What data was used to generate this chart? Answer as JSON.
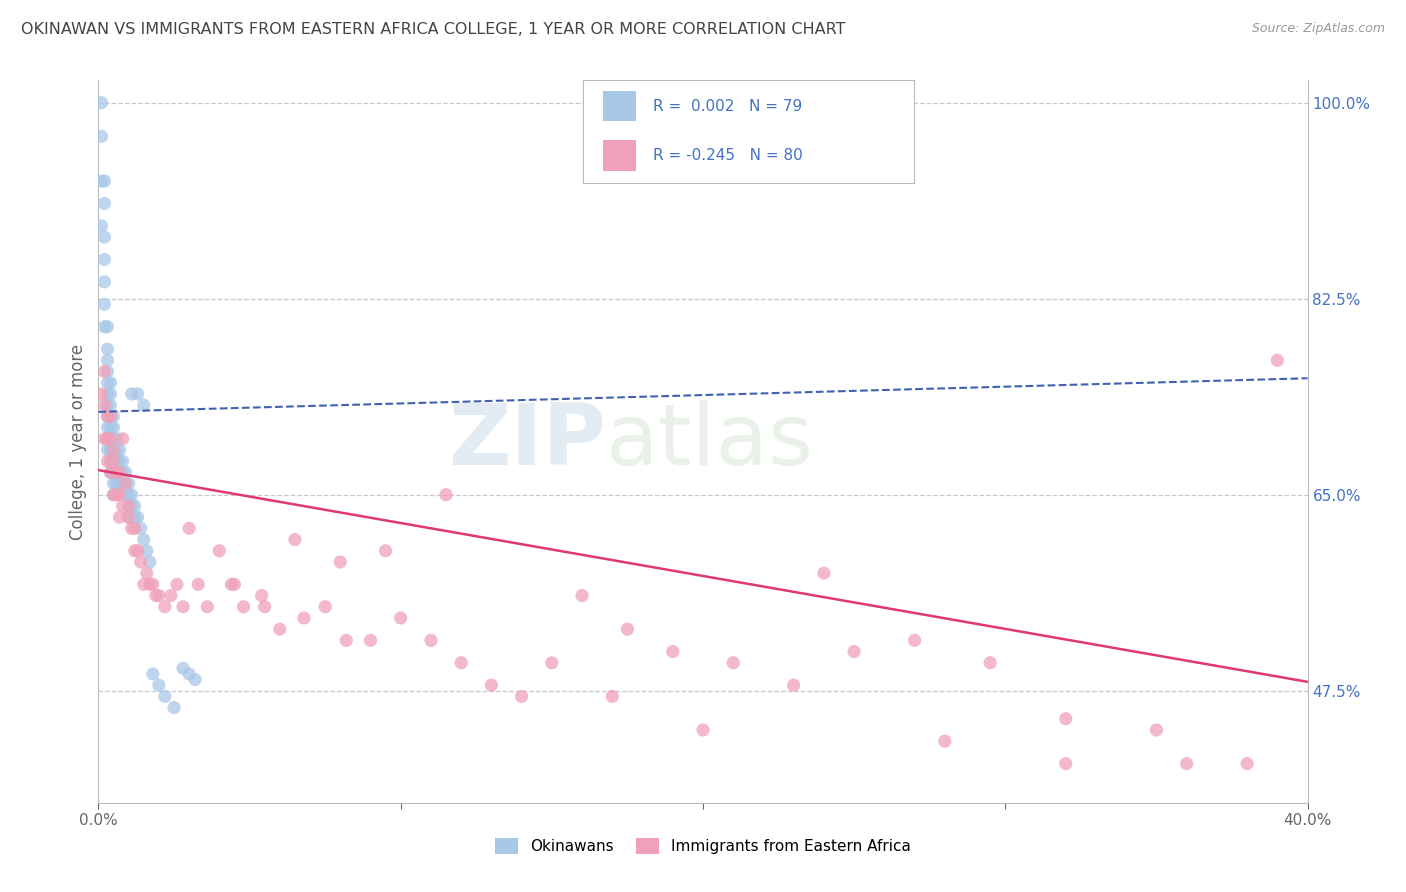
{
  "title": "OKINAWAN VS IMMIGRANTS FROM EASTERN AFRICA COLLEGE, 1 YEAR OR MORE CORRELATION CHART",
  "source": "Source: ZipAtlas.com",
  "ylabel": "College, 1 year or more",
  "xlim": [
    0.0,
    0.4
  ],
  "ylim": [
    0.375,
    1.02
  ],
  "yticks_right": [
    1.0,
    0.825,
    0.65,
    0.475
  ],
  "ytick_right_labels": [
    "100.0%",
    "82.5%",
    "65.0%",
    "47.5%"
  ],
  "background_color": "#ffffff",
  "grid_color": "#c8c8c8",
  "blue_color": "#a8c8e8",
  "pink_color": "#f0a0b8",
  "blue_line_color": "#4060b0",
  "pink_line_color": "#e03870",
  "title_color": "#444444",
  "right_label_color": "#4472c4",
  "legend_R1": "0.002",
  "legend_N1": "79",
  "legend_R2": "-0.245",
  "legend_N2": "80",
  "legend_label1": "Okinawans",
  "legend_label2": "Immigrants from Eastern Africa",
  "watermark_zip": "ZIP",
  "watermark_atlas": "atlas",
  "blue_x": [
    0.001,
    0.001,
    0.001,
    0.001,
    0.002,
    0.002,
    0.002,
    0.002,
    0.002,
    0.002,
    0.002,
    0.003,
    0.003,
    0.003,
    0.003,
    0.003,
    0.003,
    0.003,
    0.003,
    0.003,
    0.003,
    0.003,
    0.004,
    0.004,
    0.004,
    0.004,
    0.004,
    0.004,
    0.004,
    0.004,
    0.004,
    0.004,
    0.004,
    0.005,
    0.005,
    0.005,
    0.005,
    0.005,
    0.005,
    0.005,
    0.005,
    0.006,
    0.006,
    0.006,
    0.006,
    0.006,
    0.007,
    0.007,
    0.007,
    0.007,
    0.008,
    0.008,
    0.008,
    0.009,
    0.009,
    0.01,
    0.01,
    0.01,
    0.01,
    0.011,
    0.011,
    0.012,
    0.012,
    0.013,
    0.014,
    0.015,
    0.016,
    0.017,
    0.018,
    0.02,
    0.022,
    0.025,
    0.028,
    0.03,
    0.032,
    0.011,
    0.013,
    0.015,
    0.009
  ],
  "blue_y": [
    1.0,
    0.97,
    0.93,
    0.89,
    0.93,
    0.91,
    0.88,
    0.86,
    0.84,
    0.82,
    0.8,
    0.8,
    0.78,
    0.77,
    0.76,
    0.75,
    0.74,
    0.73,
    0.72,
    0.71,
    0.7,
    0.69,
    0.69,
    0.68,
    0.75,
    0.74,
    0.73,
    0.72,
    0.71,
    0.7,
    0.69,
    0.68,
    0.67,
    0.72,
    0.71,
    0.7,
    0.69,
    0.68,
    0.67,
    0.66,
    0.65,
    0.7,
    0.69,
    0.68,
    0.67,
    0.66,
    0.69,
    0.68,
    0.67,
    0.66,
    0.68,
    0.67,
    0.66,
    0.67,
    0.66,
    0.66,
    0.65,
    0.64,
    0.63,
    0.65,
    0.64,
    0.64,
    0.63,
    0.63,
    0.62,
    0.61,
    0.6,
    0.59,
    0.49,
    0.48,
    0.47,
    0.46,
    0.495,
    0.49,
    0.485,
    0.74,
    0.74,
    0.73,
    0.65
  ],
  "pink_x": [
    0.001,
    0.002,
    0.002,
    0.002,
    0.003,
    0.003,
    0.003,
    0.004,
    0.004,
    0.004,
    0.005,
    0.005,
    0.005,
    0.006,
    0.006,
    0.007,
    0.007,
    0.007,
    0.008,
    0.008,
    0.009,
    0.01,
    0.01,
    0.011,
    0.012,
    0.012,
    0.013,
    0.014,
    0.015,
    0.016,
    0.017,
    0.018,
    0.019,
    0.02,
    0.022,
    0.024,
    0.026,
    0.028,
    0.03,
    0.033,
    0.036,
    0.04,
    0.044,
    0.048,
    0.054,
    0.06,
    0.068,
    0.075,
    0.082,
    0.09,
    0.1,
    0.11,
    0.12,
    0.13,
    0.15,
    0.16,
    0.175,
    0.19,
    0.21,
    0.23,
    0.25,
    0.27,
    0.295,
    0.32,
    0.35,
    0.38,
    0.045,
    0.055,
    0.065,
    0.08,
    0.095,
    0.115,
    0.14,
    0.17,
    0.2,
    0.24,
    0.28,
    0.32,
    0.36,
    0.39
  ],
  "pink_y": [
    0.74,
    0.76,
    0.73,
    0.7,
    0.72,
    0.7,
    0.68,
    0.72,
    0.7,
    0.67,
    0.69,
    0.68,
    0.65,
    0.67,
    0.65,
    0.67,
    0.65,
    0.63,
    0.7,
    0.64,
    0.66,
    0.64,
    0.63,
    0.62,
    0.62,
    0.6,
    0.6,
    0.59,
    0.57,
    0.58,
    0.57,
    0.57,
    0.56,
    0.56,
    0.55,
    0.56,
    0.57,
    0.55,
    0.62,
    0.57,
    0.55,
    0.6,
    0.57,
    0.55,
    0.56,
    0.53,
    0.54,
    0.55,
    0.52,
    0.52,
    0.54,
    0.52,
    0.5,
    0.48,
    0.5,
    0.56,
    0.53,
    0.51,
    0.5,
    0.48,
    0.51,
    0.52,
    0.5,
    0.45,
    0.44,
    0.41,
    0.57,
    0.55,
    0.61,
    0.59,
    0.6,
    0.65,
    0.47,
    0.47,
    0.44,
    0.58,
    0.43,
    0.41,
    0.41,
    0.77
  ],
  "blue_trend_x0": 0.0,
  "blue_trend_y0": 0.724,
  "blue_trend_x1": 0.4,
  "blue_trend_y1": 0.754,
  "pink_trend_x0": 0.0,
  "pink_trend_y0": 0.672,
  "pink_trend_x1": 0.4,
  "pink_trend_y1": 0.483
}
